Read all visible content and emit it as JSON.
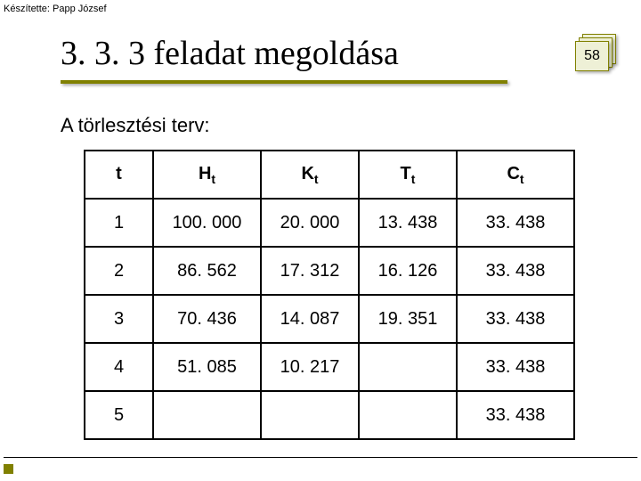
{
  "author_line": "Készítette: Papp József",
  "title": "3. 3. 3 feladat megoldása",
  "page_number": "58",
  "subheading": "A törlesztési terv:",
  "table": {
    "columns": [
      {
        "main": "t",
        "sub": ""
      },
      {
        "main": "H",
        "sub": "t"
      },
      {
        "main": "K",
        "sub": "t"
      },
      {
        "main": "T",
        "sub": "t"
      },
      {
        "main": "C",
        "sub": "t"
      }
    ],
    "rows": [
      [
        "1",
        "100. 000",
        "20. 000",
        "13. 438",
        "33. 438"
      ],
      [
        "2",
        "86. 562",
        "17. 312",
        "16. 126",
        "33. 438"
      ],
      [
        "3",
        "70. 436",
        "14. 087",
        "19. 351",
        "33. 438"
      ],
      [
        "4",
        "51. 085",
        "10. 217",
        "",
        "33. 438"
      ],
      [
        "5",
        "",
        "",
        "",
        "33. 438"
      ]
    ]
  },
  "colors": {
    "accent": "#808000",
    "badge_fill": "#eef0d6",
    "border": "#000000",
    "background": "#ffffff"
  }
}
